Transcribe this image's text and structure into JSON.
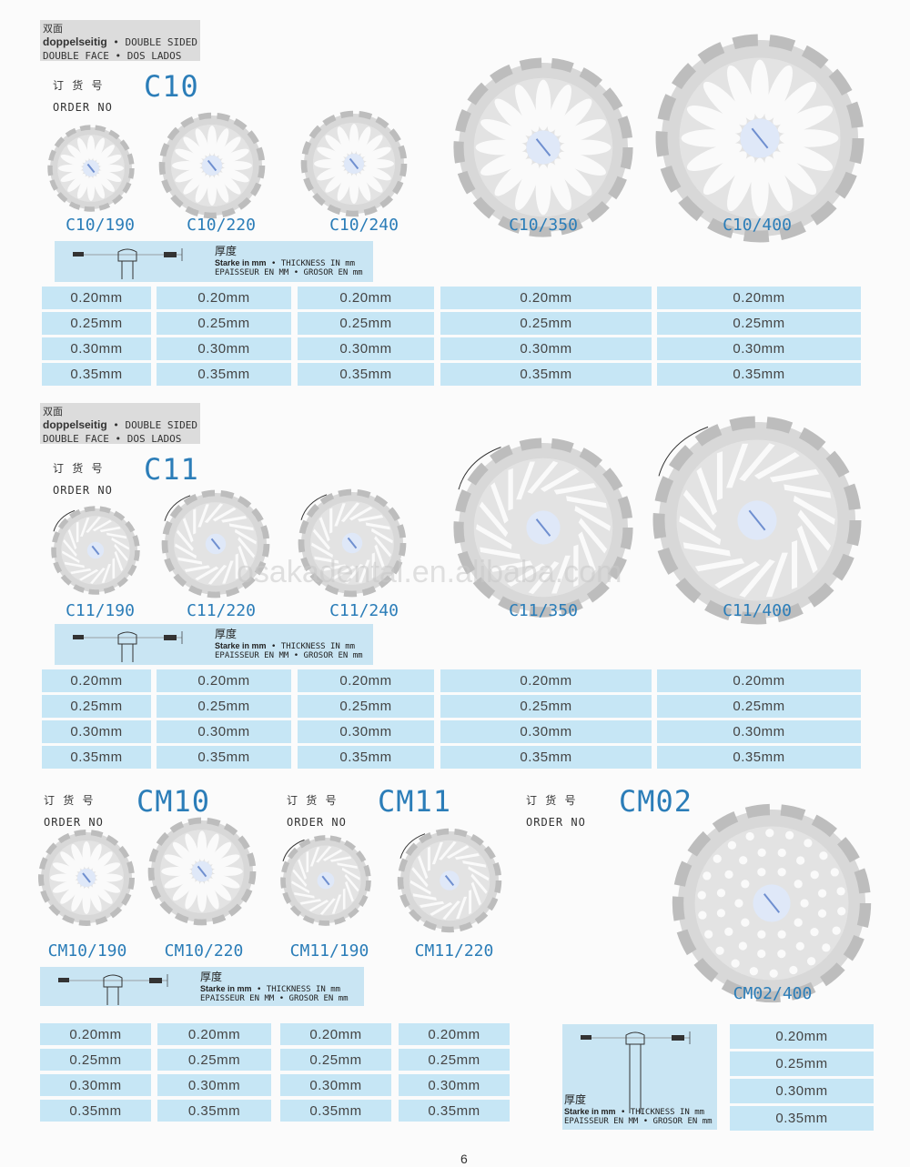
{
  "header_box": {
    "zh": "双面",
    "de": "doppelseitig",
    "en": "• DOUBLE SIDED",
    "line2": "DOUBLE FACE • DOS LADOS"
  },
  "order_label": {
    "zh": "订 货 号",
    "en": "ORDER NO"
  },
  "legend": {
    "zh": "厚度",
    "de": "Starke in mm",
    "en": "• THICKNESS IN mm",
    "line2": "EPAISSEUR EN MM • GROSOR EN mm"
  },
  "thicknesses": [
    "0.20mm",
    "0.25mm",
    "0.30mm",
    "0.35mm"
  ],
  "sections": [
    {
      "code": "C10",
      "items": [
        "C10/190",
        "C10/220",
        "C10/240",
        "C10/350",
        "C10/400"
      ],
      "style": "petal"
    },
    {
      "code": "C11",
      "items": [
        "C11/190",
        "C11/220",
        "C11/240",
        "C11/350",
        "C11/400"
      ],
      "style": "slot"
    }
  ],
  "bottom": {
    "groups": [
      {
        "code": "CM10",
        "items": [
          "CM10/190",
          "CM10/220"
        ]
      },
      {
        "code": "CM11",
        "items": [
          "CM11/190",
          "CM11/220"
        ]
      },
      {
        "code": "CM02",
        "items": [
          "CM02/400"
        ]
      }
    ]
  },
  "watermark": "osakadental.en.alibaba.com",
  "page_number": "6",
  "colors": {
    "accent": "#2b7db8",
    "cell": "#c6e6f5",
    "legend": "#c9e5f3"
  }
}
